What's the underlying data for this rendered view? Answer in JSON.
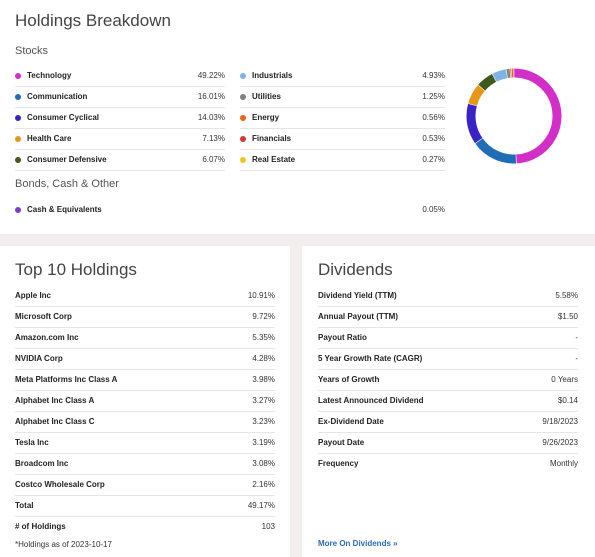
{
  "holdings_breakdown": {
    "title": "Holdings Breakdown",
    "stocks_label": "Stocks",
    "bonds_label": "Bonds, Cash & Other",
    "left_items": [
      {
        "label": "Technology",
        "value": "49.22%",
        "color": "#d22fc9"
      },
      {
        "label": "Communication",
        "value": "16.01%",
        "color": "#1f6db5"
      },
      {
        "label": "Consumer Cyclical",
        "value": "14.03%",
        "color": "#3a23c6"
      },
      {
        "label": "Health Care",
        "value": "7.13%",
        "color": "#e8961a"
      },
      {
        "label": "Consumer Defensive",
        "value": "6.07%",
        "color": "#3f5a1c"
      }
    ],
    "right_items": [
      {
        "label": "Industrials",
        "value": "4.93%",
        "color": "#7fb3e6"
      },
      {
        "label": "Utilities",
        "value": "1.25%",
        "color": "#808080"
      },
      {
        "label": "Energy",
        "value": "0.56%",
        "color": "#e8651a"
      },
      {
        "label": "Financials",
        "value": "0.53%",
        "color": "#d63a2e"
      },
      {
        "label": "Real Estate",
        "value": "0.27%",
        "color": "#f0c419"
      }
    ],
    "other_items": [
      {
        "label": "Cash & Equivalents",
        "value": "0.05%",
        "color": "#7a3fc9"
      }
    ],
    "chart_data": {
      "type": "pie",
      "categories": [
        "Technology",
        "Communication",
        "Consumer Cyclical",
        "Health Care",
        "Consumer Defensive",
        "Industrials",
        "Utilities",
        "Energy",
        "Financials",
        "Real Estate",
        "Cash & Equivalents"
      ],
      "values": [
        49.22,
        16.01,
        14.03,
        7.13,
        6.07,
        4.93,
        1.25,
        0.56,
        0.53,
        0.27,
        0.05
      ],
      "colors": [
        "#d22fc9",
        "#1f6db5",
        "#3a23c6",
        "#e8961a",
        "#3f5a1c",
        "#7fb3e6",
        "#808080",
        "#e8651a",
        "#d63a2e",
        "#f0c419",
        "#7a3fc9"
      ],
      "donut": true
    }
  },
  "top10": {
    "title": "Top 10 Holdings",
    "rows": [
      {
        "label": "Apple Inc",
        "value": "10.91%"
      },
      {
        "label": "Microsoft Corp",
        "value": "9.72%"
      },
      {
        "label": "Amazon.com Inc",
        "value": "5.35%"
      },
      {
        "label": "NVIDIA Corp",
        "value": "4.28%"
      },
      {
        "label": "Meta Platforms Inc Class A",
        "value": "3.98%"
      },
      {
        "label": "Alphabet Inc Class A",
        "value": "3.27%"
      },
      {
        "label": "Alphabet Inc Class C",
        "value": "3.23%"
      },
      {
        "label": "Tesla Inc",
        "value": "3.19%"
      },
      {
        "label": "Broadcom Inc",
        "value": "3.08%"
      },
      {
        "label": "Costco Wholesale Corp",
        "value": "2.16%"
      }
    ],
    "total_label": "Total",
    "total_value": "49.17%",
    "count_label": "# of Holdings",
    "count_value": "103",
    "note": "*Holdings as of 2023-10-17"
  },
  "dividends": {
    "title": "Dividends",
    "rows": [
      {
        "label": "Dividend Yield (TTM)",
        "value": "5.58%"
      },
      {
        "label": "Annual Payout (TTM)",
        "value": "$1.50"
      },
      {
        "label": "Payout Ratio",
        "value": "-"
      },
      {
        "label": "5 Year Growth Rate (CAGR)",
        "value": "-"
      },
      {
        "label": "Years of Growth",
        "value": "0 Years"
      },
      {
        "label": "Latest Announced Dividend",
        "value": "$0.14"
      },
      {
        "label": "Ex-Dividend Date",
        "value": "9/18/2023"
      },
      {
        "label": "Payout Date",
        "value": "9/26/2023"
      },
      {
        "label": "Frequency",
        "value": "Monthly"
      }
    ],
    "more_link": "More On Dividends »"
  }
}
